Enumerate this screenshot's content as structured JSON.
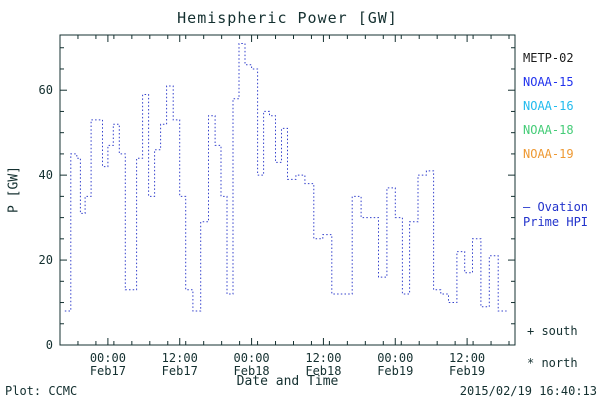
{
  "footer": {
    "plot_credit": "Plot: CCMC",
    "timestamp": "2015/02/19 16:40:13"
  },
  "legend": {
    "satellites": [
      {
        "label": "METP-02",
        "color": "#1a1a1a"
      },
      {
        "label": "NOAA-15",
        "color": "#2233ee"
      },
      {
        "label": "NOAA-16",
        "color": "#22bbee"
      },
      {
        "label": "NOAA-18",
        "color": "#44cc77"
      },
      {
        "label": "NOAA-19",
        "color": "#ee9933"
      }
    ],
    "ovation": {
      "line1": "— Ovation",
      "line2": "Prime HPI",
      "color": "#2233cc"
    },
    "south_marker": "+ south",
    "north_marker": "* north"
  },
  "chart_data": {
    "type": "line",
    "style": "step-dotted",
    "title": "Hemispheric Power [GW]",
    "xlabel": "Date and Time",
    "ylabel": "P [GW]",
    "xlim": [
      0,
      76
    ],
    "ylim": [
      0,
      73
    ],
    "grid": false,
    "legend_position": "right",
    "axis_color": "#143030",
    "x_ticks": [
      {
        "t": 8,
        "label": "00:00",
        "sub": "Feb17"
      },
      {
        "t": 20,
        "label": "12:00",
        "sub": "Feb17"
      },
      {
        "t": 32,
        "label": "00:00",
        "sub": "Feb18"
      },
      {
        "t": 44,
        "label": "12:00",
        "sub": "Feb18"
      },
      {
        "t": 56,
        "label": "00:00",
        "sub": "Feb19"
      },
      {
        "t": 68,
        "label": "12:00",
        "sub": "Feb19"
      }
    ],
    "x_minor_step": 3,
    "y_ticks": [
      0,
      20,
      40,
      60
    ],
    "y_minor_step": 5,
    "series": [
      {
        "name": "Ovation Prime HPI",
        "color": "#3340cc",
        "points": [
          [
            0.8,
            8
          ],
          [
            1.8,
            45
          ],
          [
            2.8,
            44
          ],
          [
            3.4,
            31
          ],
          [
            4.2,
            35
          ],
          [
            5.2,
            53
          ],
          [
            6.3,
            53
          ],
          [
            7.1,
            42
          ],
          [
            8.0,
            47
          ],
          [
            8.9,
            52
          ],
          [
            9.9,
            45
          ],
          [
            10.9,
            13
          ],
          [
            11.9,
            13
          ],
          [
            12.8,
            44
          ],
          [
            13.8,
            59
          ],
          [
            14.8,
            35
          ],
          [
            15.8,
            46
          ],
          [
            16.8,
            52
          ],
          [
            17.8,
            61
          ],
          [
            18.9,
            53
          ],
          [
            20.0,
            35
          ],
          [
            21.0,
            13
          ],
          [
            22.2,
            8
          ],
          [
            23.5,
            29
          ],
          [
            24.8,
            54
          ],
          [
            25.9,
            47
          ],
          [
            26.9,
            35
          ],
          [
            27.9,
            12
          ],
          [
            28.9,
            58
          ],
          [
            29.9,
            71
          ],
          [
            30.9,
            66
          ],
          [
            32.0,
            65
          ],
          [
            33.0,
            40
          ],
          [
            34.0,
            55
          ],
          [
            35.0,
            54
          ],
          [
            36.0,
            43
          ],
          [
            37.0,
            51
          ],
          [
            38.0,
            39
          ],
          [
            39.4,
            40
          ],
          [
            40.9,
            38
          ],
          [
            42.4,
            25
          ],
          [
            43.9,
            26
          ],
          [
            45.4,
            12
          ],
          [
            46.9,
            12
          ],
          [
            48.8,
            35
          ],
          [
            50.3,
            30
          ],
          [
            51.8,
            30
          ],
          [
            53.2,
            16
          ],
          [
            54.6,
            37
          ],
          [
            56.0,
            30
          ],
          [
            57.2,
            12
          ],
          [
            58.4,
            29
          ],
          [
            59.8,
            40
          ],
          [
            61.2,
            41
          ],
          [
            62.4,
            13
          ],
          [
            63.6,
            12
          ],
          [
            64.9,
            10
          ],
          [
            66.3,
            22
          ],
          [
            67.6,
            17
          ],
          [
            68.9,
            25
          ],
          [
            70.3,
            9
          ],
          [
            71.7,
            21
          ],
          [
            73.2,
            8
          ]
        ]
      }
    ]
  }
}
